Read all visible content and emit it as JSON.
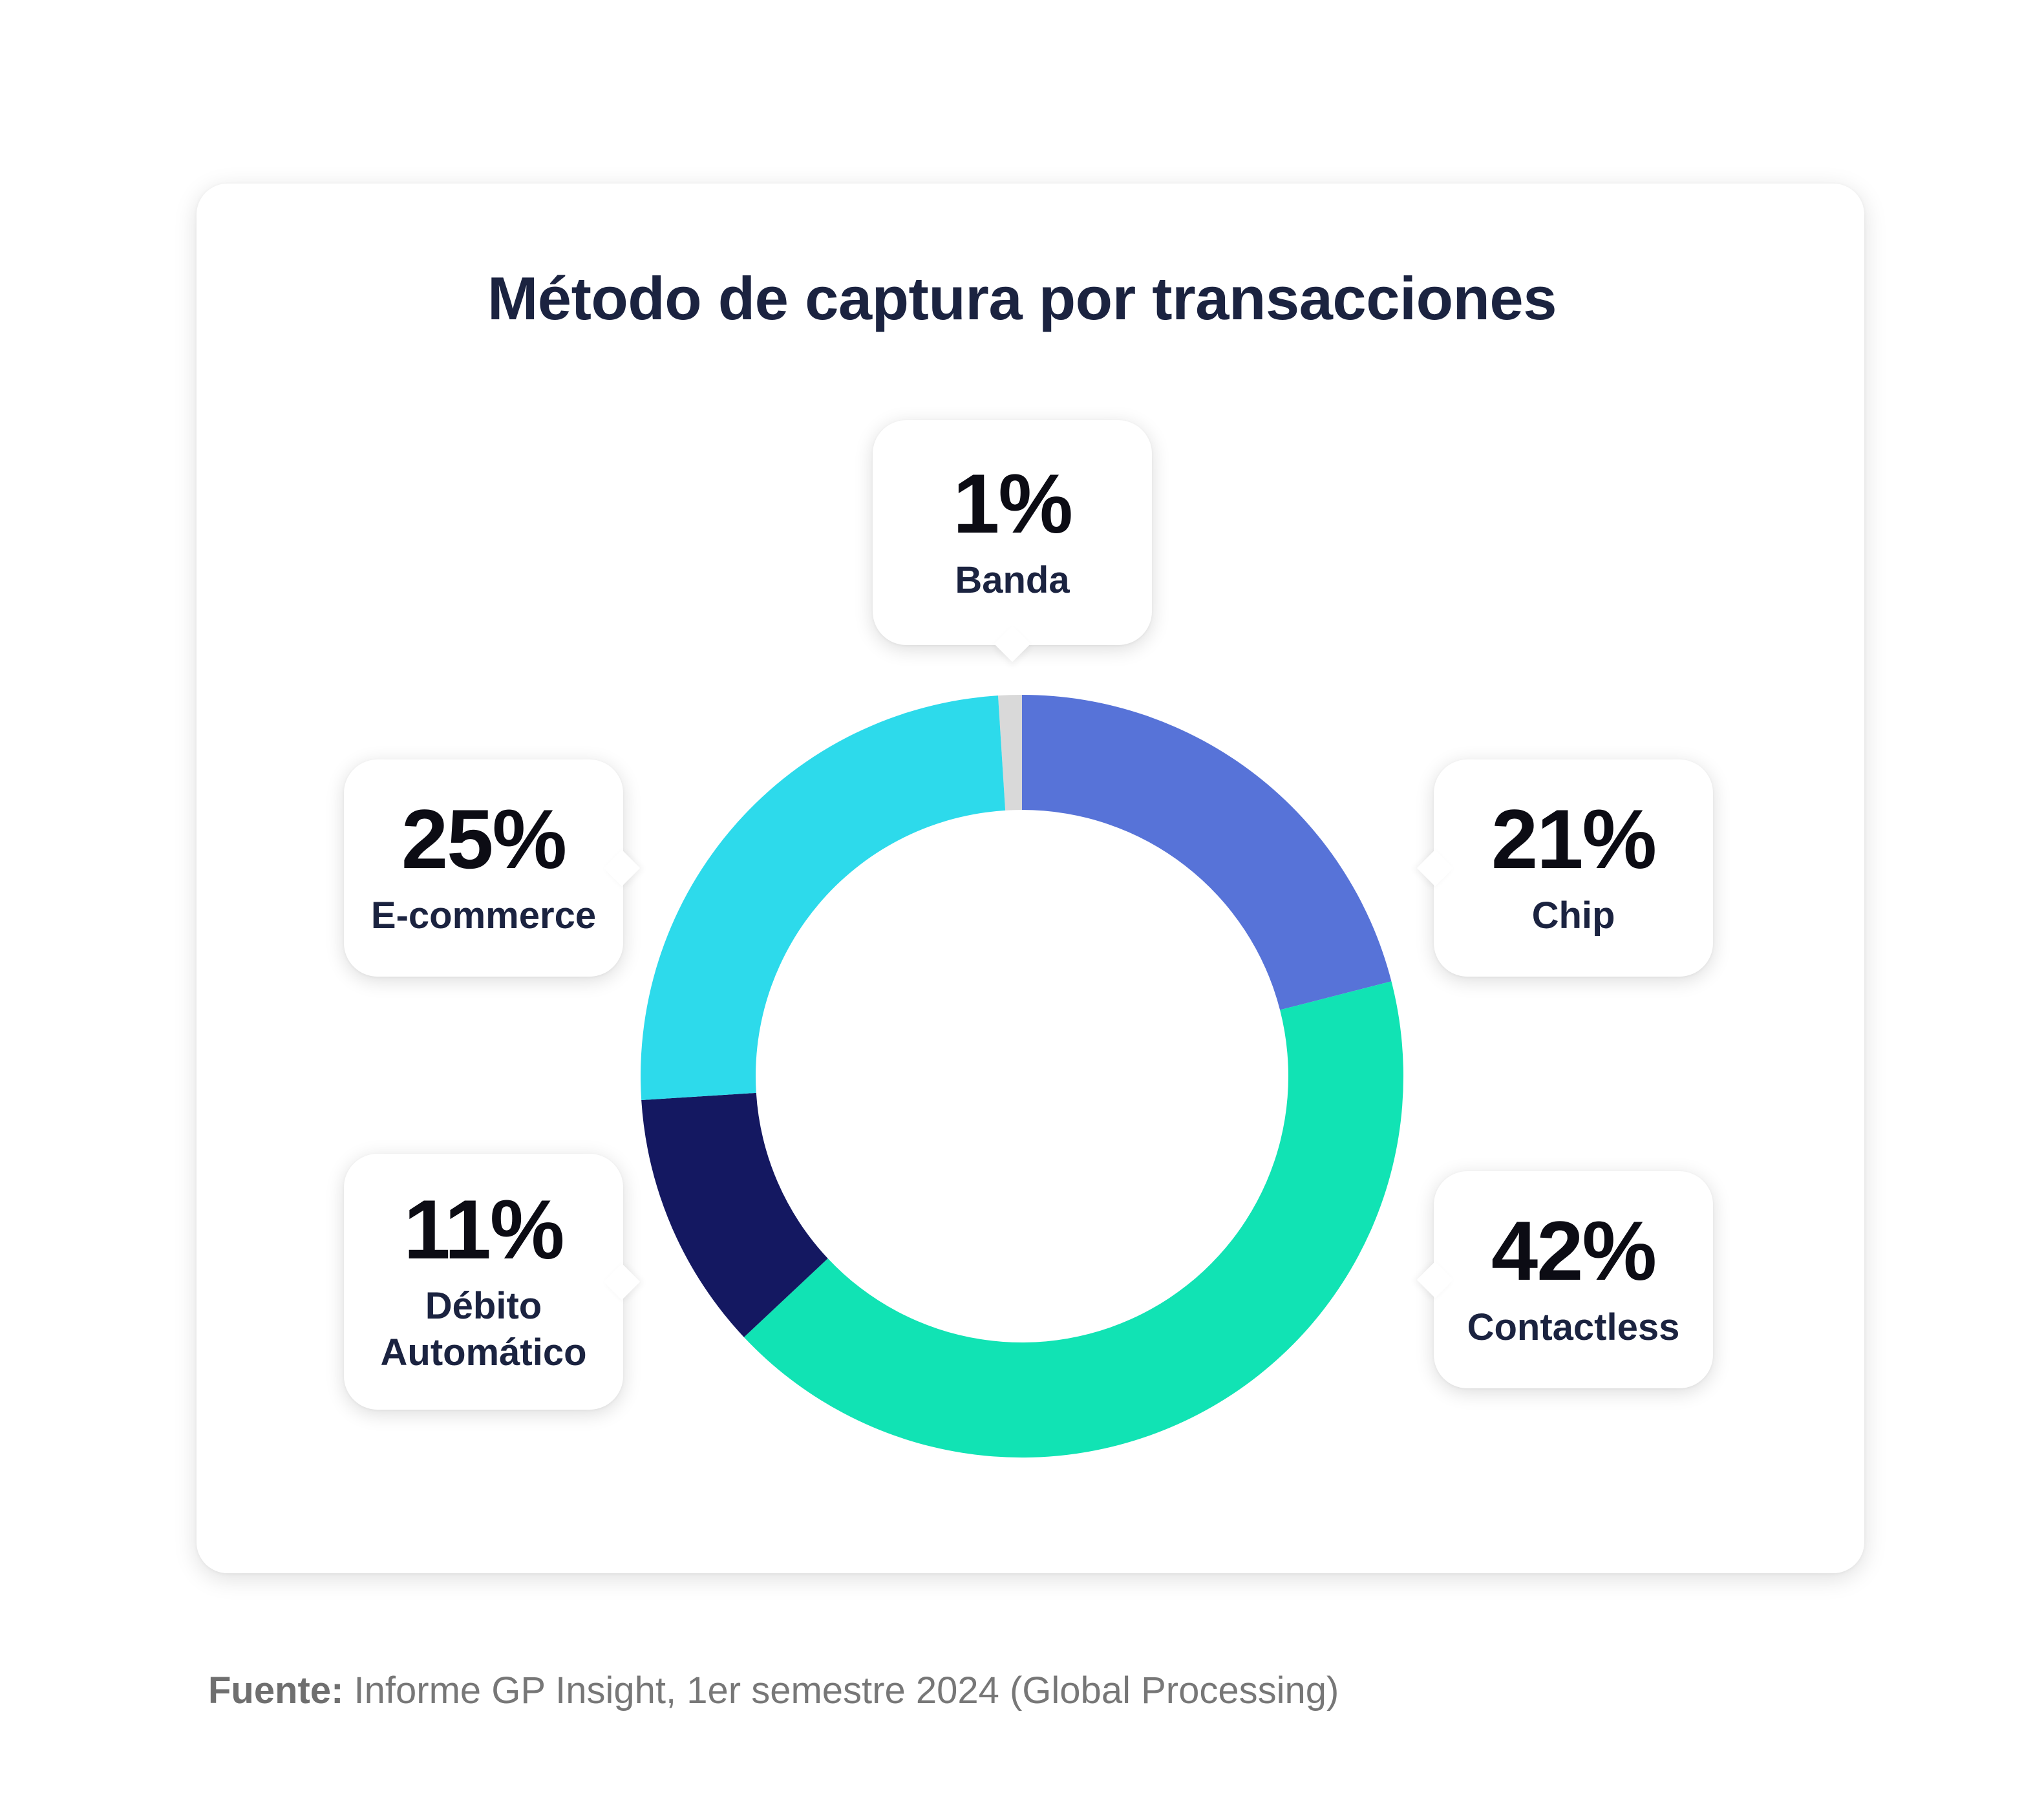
{
  "chart_data": {
    "type": "pie",
    "title": "Método de captura por transacciones",
    "slices": [
      {
        "label": "Banda",
        "value": 1,
        "display": "1%",
        "color": "#d9d9d9"
      },
      {
        "label": "Chip",
        "value": 21,
        "display": "21%",
        "color": "#5773d8"
      },
      {
        "label": "Contactless",
        "value": 42,
        "display": "42%",
        "color": "#11e3b4"
      },
      {
        "label": "Débito\nAutomático",
        "value": 11,
        "display": "11%",
        "color": "#141861"
      },
      {
        "label": "E-commerce",
        "value": 25,
        "display": "25%",
        "color": "#2ddaeb"
      }
    ]
  },
  "source": {
    "prefix": "Fuente:",
    "text": " Informe GP Insight, 1er semestre 2024 (Global Processing)"
  }
}
